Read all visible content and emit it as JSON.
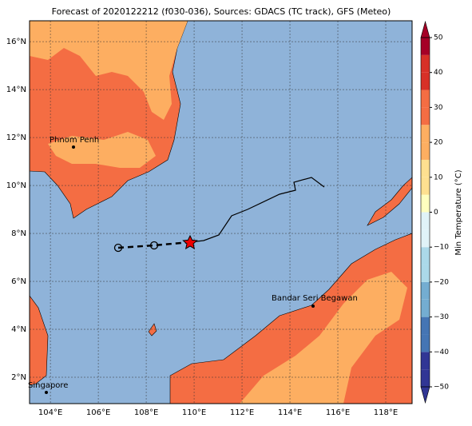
{
  "map": {
    "title": "Forecast of 2020122212 (f030-036), Sources: GDACS (TC track), GFS (Meteo)",
    "xlim": [
      103.13,
      119.1
    ],
    "ylim": [
      0.9,
      16.87
    ],
    "xticks": [
      {
        "value": 104,
        "label": "104°E"
      },
      {
        "value": 106,
        "label": "106°E"
      },
      {
        "value": 108,
        "label": "108°E"
      },
      {
        "value": 110,
        "label": "110°E"
      },
      {
        "value": 112,
        "label": "112°E"
      },
      {
        "value": 114,
        "label": "114°E"
      },
      {
        "value": 116,
        "label": "116°E"
      },
      {
        "value": 118,
        "label": "118°E"
      }
    ],
    "yticks": [
      {
        "value": 2,
        "label": "2°N"
      },
      {
        "value": 4,
        "label": "4°N"
      },
      {
        "value": 6,
        "label": "6°N"
      },
      {
        "value": 8,
        "label": "8°N"
      },
      {
        "value": 10,
        "label": "10°N"
      },
      {
        "value": 12,
        "label": "12°N"
      },
      {
        "value": 14,
        "label": "14°N"
      },
      {
        "value": 16,
        "label": "16°N"
      }
    ],
    "cities": [
      "Phnom Penh",
      "Bandar Seri Begawan",
      "Singapore"
    ],
    "colorbar": {
      "label": "Min Temperature (°C)",
      "lim": [
        -50,
        50
      ],
      "ticks": [
        50,
        40,
        30,
        20,
        10,
        0,
        {
          "value": -10,
          "label": "−10"
        },
        {
          "value": -20,
          "label": "−20"
        },
        {
          "value": -30,
          "label": "−30"
        },
        {
          "value": -40,
          "label": "−40"
        },
        {
          "value": -50,
          "label": "−50"
        }
      ],
      "colors": [
        "#313695",
        "#313695",
        "#4575b4",
        "#4575b4",
        "#74add1",
        "#74add1",
        "#abd9e9",
        "#abd9e9",
        "#e0f3f8",
        "#e0f3f8",
        "#ffffbf",
        "#fee090",
        "#fee090",
        "#fdae61",
        "#fdae61",
        "#f46d43",
        "#f46d43",
        "#d73027",
        "#d73027",
        "#a50026"
      ]
    }
  }
}
